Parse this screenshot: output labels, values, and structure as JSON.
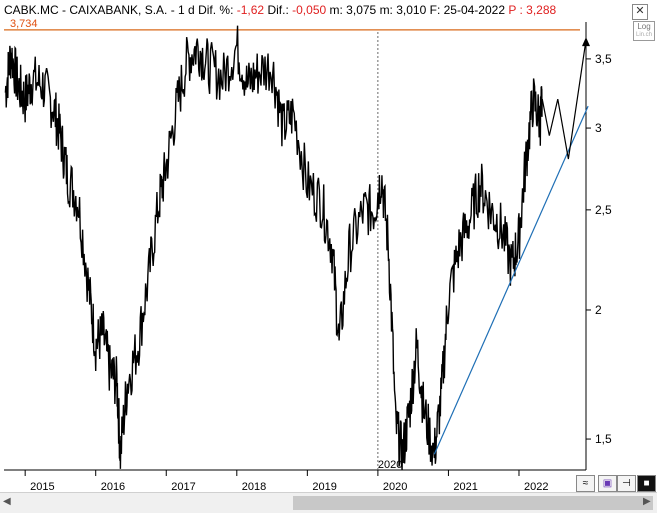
{
  "header": {
    "ticker": "CABK.MC - CAIXABANK, S.A.  -  1 d",
    "dif_pct_label": "Dif. %:",
    "dif_pct_value": "-1,62",
    "dif_label": "Dif.:",
    "dif_value": "-0,050",
    "m_label": "m: 3,075",
    "m2_label": "m: 3,010",
    "date_label": "F: 25-04-2022",
    "price_label": "P :",
    "price_value": "3,288"
  },
  "controls": {
    "close": "✕",
    "log_label": "Log",
    "log_sub": "Lin.ch"
  },
  "chart_data": {
    "type": "line",
    "scale": "log",
    "ylim": [
      1.4,
      3.8
    ],
    "yticks": [
      "3,5",
      "3",
      "2,5",
      "2",
      "1,5"
    ],
    "ytick_values": [
      3.5,
      3.0,
      2.5,
      2.0,
      1.5
    ],
    "xticks": [
      "2015",
      "2016",
      "2017",
      "2018",
      "2019",
      "2020",
      "2021",
      "2022"
    ],
    "xtick_values": [
      2015,
      2016,
      2017,
      2018,
      2019,
      2020,
      2021,
      2022
    ],
    "xlim": [
      2014.7,
      2022.95
    ],
    "marker_label": "2020",
    "marker_x": 2020.0,
    "resistance_label": "3,734",
    "resistance_value": 3.734,
    "resistance_color": "#d86a1a",
    "trend_color": "#1f6fb5",
    "series_points": [
      [
        2014.72,
        3.25
      ],
      [
        2014.8,
        3.55
      ],
      [
        2014.9,
        3.3
      ],
      [
        2015.0,
        3.2
      ],
      [
        2015.1,
        3.35
      ],
      [
        2015.25,
        3.3
      ],
      [
        2015.4,
        3.15
      ],
      [
        2015.5,
        2.95
      ],
      [
        2015.6,
        2.7
      ],
      [
        2015.75,
        2.55
      ],
      [
        2015.9,
        2.1
      ],
      [
        2016.0,
        1.85
      ],
      [
        2016.1,
        1.9
      ],
      [
        2016.2,
        1.75
      ],
      [
        2016.3,
        1.7
      ],
      [
        2016.35,
        1.45
      ],
      [
        2016.45,
        1.7
      ],
      [
        2016.6,
        1.85
      ],
      [
        2016.75,
        2.15
      ],
      [
        2016.9,
        2.55
      ],
      [
        2017.0,
        2.75
      ],
      [
        2017.15,
        3.15
      ],
      [
        2017.3,
        3.5
      ],
      [
        2017.45,
        3.6
      ],
      [
        2017.6,
        3.45
      ],
      [
        2017.8,
        3.35
      ],
      [
        2018.0,
        3.6
      ],
      [
        2018.15,
        3.3
      ],
      [
        2018.3,
        3.4
      ],
      [
        2018.5,
        3.45
      ],
      [
        2018.65,
        3.0
      ],
      [
        2018.8,
        3.1
      ],
      [
        2019.0,
        2.65
      ],
      [
        2019.2,
        2.55
      ],
      [
        2019.35,
        2.3
      ],
      [
        2019.45,
        1.85
      ],
      [
        2019.6,
        2.3
      ],
      [
        2019.8,
        2.5
      ],
      [
        2019.95,
        2.5
      ],
      [
        2020.05,
        2.7
      ],
      [
        2020.15,
        2.3
      ],
      [
        2020.25,
        1.55
      ],
      [
        2020.35,
        1.45
      ],
      [
        2020.45,
        1.6
      ],
      [
        2020.55,
        1.85
      ],
      [
        2020.65,
        1.6
      ],
      [
        2020.8,
        1.45
      ],
      [
        2020.9,
        1.65
      ],
      [
        2021.0,
        2.05
      ],
      [
        2021.15,
        2.3
      ],
      [
        2021.3,
        2.45
      ],
      [
        2021.45,
        2.65
      ],
      [
        2021.6,
        2.5
      ],
      [
        2021.75,
        2.4
      ],
      [
        2021.9,
        2.2
      ],
      [
        2022.0,
        2.35
      ],
      [
        2022.1,
        2.8
      ],
      [
        2022.2,
        3.2
      ],
      [
        2022.3,
        3.05
      ],
      [
        2022.33,
        3.2
      ]
    ],
    "projection_points": [
      [
        2022.33,
        3.2
      ],
      [
        2022.43,
        2.95
      ],
      [
        2022.55,
        3.2
      ],
      [
        2022.7,
        2.8
      ],
      [
        2022.95,
        3.65
      ]
    ],
    "trendline": [
      [
        2020.8,
        1.45
      ],
      [
        2022.98,
        3.15
      ]
    ]
  }
}
